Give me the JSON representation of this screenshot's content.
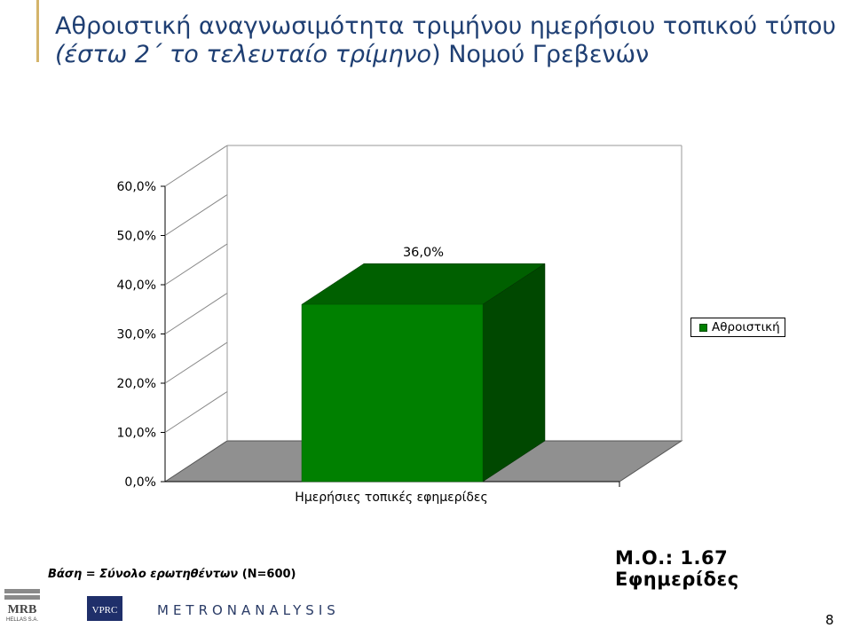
{
  "slide": {
    "title_part1": "Αθροιστική αναγνωσιμότητα τριμήνου ημερήσιου τοπικού τύπου ",
    "title_italic": "(έστω 2΄ το τελευταίο τρίμηνο",
    "title_part2": ") Νομού Γρεβενών",
    "base_note_label": "Βάση = Σύνολο ερωτηθέντων",
    "base_note_n": " (N=600)",
    "mean_label": "Μ.Ο.: 1.67 Εφημερίδες",
    "page_number": "8"
  },
  "logos": {
    "mrb_top": "MRB",
    "mrb_bottom": "HELLAS S.A.",
    "vprc": "VPRC",
    "metron": "METRONANALYSIS"
  },
  "colors": {
    "bar_front": "#008000",
    "bar_top": "#006000",
    "bar_side": "#004800",
    "floor": "#909090",
    "title": "#1f3f73"
  },
  "chart_data": {
    "type": "bar",
    "categories": [
      "Ημερήσιες τοπικές εφημερίδες"
    ],
    "series": [
      {
        "name": "Αθροιστική",
        "values": [
          36.0
        ]
      }
    ],
    "data_labels": [
      "36,0%"
    ],
    "ylim": [
      0,
      60
    ],
    "yticks": [
      "0,0%",
      "10,0%",
      "20,0%",
      "30,0%",
      "40,0%",
      "50,0%",
      "60,0%"
    ],
    "legend_position": "right",
    "three_d": true
  }
}
